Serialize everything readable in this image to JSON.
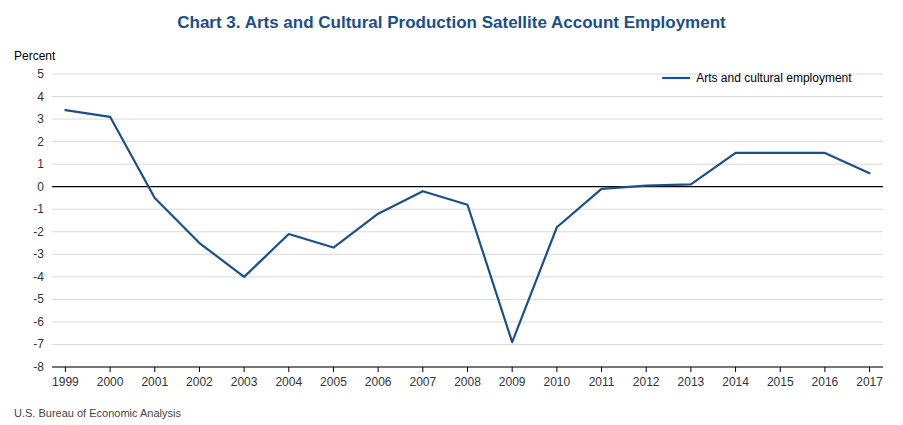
{
  "chart_data": {
    "type": "line",
    "title": "Chart 3. Arts and Cultural Production Satellite Account Employment",
    "y_label": "Percent",
    "annotations": [
      "U.S. Bureau of Economic Analysis"
    ],
    "x": [
      1999,
      2000,
      2001,
      2002,
      2003,
      2004,
      2005,
      2006,
      2007,
      2008,
      2009,
      2010,
      2011,
      2012,
      2013,
      2014,
      2015,
      2016,
      2017
    ],
    "series": [
      {
        "name": "Arts and cultural employment",
        "color": "#1a4f8a",
        "values": [
          3.4,
          3.1,
          -0.5,
          -2.5,
          -4.0,
          -2.1,
          -2.7,
          -1.2,
          -0.2,
          -0.8,
          -6.9,
          -1.8,
          -0.1,
          0.05,
          0.1,
          1.5,
          1.5,
          1.5,
          0.6
        ]
      }
    ],
    "xlim": [
      1998.7,
      2017.3
    ],
    "xticks": [
      1999,
      2000,
      2001,
      2002,
      2003,
      2004,
      2005,
      2006,
      2007,
      2008,
      2009,
      2010,
      2011,
      2012,
      2013,
      2014,
      2015,
      2016,
      2017
    ],
    "ylim": [
      -8,
      5
    ],
    "yticks": [
      -8,
      -7,
      -6,
      -5,
      -4,
      -3,
      -2,
      -1,
      0,
      1,
      2,
      3,
      4,
      5
    ],
    "grid": true,
    "legend": "upper right"
  }
}
